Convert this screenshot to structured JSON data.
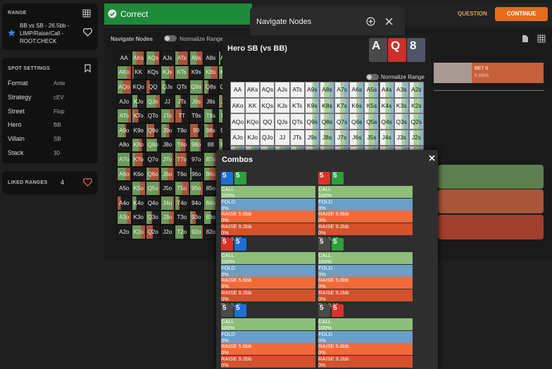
{
  "sidebar": {
    "range_panel": {
      "title": "RANGE",
      "description": "BB vs SB - 26.5bb - LIMP/Raise/Call - ROOT:CHECK"
    },
    "spot_settings": {
      "title": "SPOT SETTINGS",
      "rows": [
        [
          "Format",
          "Ante"
        ],
        [
          "Strategy",
          "cEV"
        ],
        [
          "Street",
          "Flop"
        ],
        [
          "Hero",
          "BB"
        ],
        [
          "Villain",
          "SB"
        ],
        [
          "Stack",
          "30"
        ]
      ]
    },
    "liked_ranges": {
      "title": "LIKED RANGES",
      "count": "4"
    }
  },
  "top_bar": {
    "status": "Correct",
    "question": "QUESTION",
    "continue": "CONTINUE"
  },
  "range_view": {
    "title": "Navigate Nodes",
    "toggle": "Normalize Range"
  },
  "node_action": {
    "label": "BET 6",
    "frequency": "9.391%"
  },
  "hand_grid": [
    [
      "AA",
      "AKs",
      "AQs",
      "AJs",
      "ATs",
      "A9s",
      "A8s",
      "A7s",
      "A6s",
      "A5s",
      "A4s",
      "A3s",
      "A2s"
    ],
    [
      "AKo",
      "KK",
      "KQs",
      "KJs",
      "KTs",
      "K9s",
      "K8s",
      "K7s",
      "K6s",
      "K5s",
      "K4s",
      "K3s",
      "K2s"
    ],
    [
      "AQo",
      "KQo",
      "QQ",
      "QJs",
      "QTs",
      "Q9s",
      "Q8s",
      "Q7s",
      "Q6s",
      "Q5s",
      "Q4s",
      "Q3s",
      "Q2s"
    ],
    [
      "AJo",
      "KJo",
      "QJo",
      "JJ",
      "JTs",
      "J9s",
      "J8s",
      "J7s",
      "J6s",
      "J5s",
      "J4s",
      "J3s",
      "J2s"
    ],
    [
      "ATo",
      "KTo",
      "QTo",
      "JTo",
      "TT",
      "T9s",
      "T8s",
      "T7s",
      "T6s",
      "T5s",
      "T4s",
      "T3s",
      "T2s"
    ],
    [
      "A9o",
      "K9o",
      "Q9o",
      "J9o",
      "T9o",
      "99",
      "98s",
      "97s",
      "96s",
      "95s",
      "94s",
      "93s",
      "92s"
    ],
    [
      "A8o",
      "K8o",
      "Q8o",
      "J8o",
      "T8o",
      "98o",
      "88",
      "87s",
      "86s",
      "85s",
      "84s",
      "83s",
      "82s"
    ],
    [
      "A7o",
      "K7o",
      "Q7o",
      "J7o",
      "T7o",
      "97o",
      "87o",
      "77",
      "76s",
      "75s",
      "74s",
      "73s",
      "72s"
    ],
    [
      "A6o",
      "K6o",
      "Q6o",
      "J6o",
      "T6o",
      "96o",
      "86o",
      "76o",
      "66",
      "65s",
      "64s",
      "63s",
      "62s"
    ],
    [
      "A5o",
      "K5o",
      "Q5o",
      "J5o",
      "T5o",
      "95o",
      "85o",
      "75o",
      "65o",
      "55",
      "54s",
      "53s",
      "52s"
    ],
    [
      "A4o",
      "K4o",
      "Q4o",
      "J4o",
      "T4o",
      "94o",
      "84o",
      "74o",
      "64o",
      "54o",
      "44",
      "43s",
      "42s"
    ],
    [
      "A3o",
      "K3o",
      "Q3o",
      "J3o",
      "T3o",
      "93o",
      "83o",
      "73o",
      "63o",
      "53o",
      "43o",
      "33",
      "32s"
    ],
    [
      "A2o",
      "K2o",
      "Q2o",
      "J2o",
      "T2o",
      "92o",
      "82o",
      "72o",
      "62o",
      "52o",
      "42o",
      "32o",
      "22"
    ]
  ],
  "navigate_modal": {
    "title": "Navigate Nodes",
    "node": "Hero SB (vs BB)",
    "board": [
      {
        "rank": "A",
        "color": "#4a4a4a"
      },
      {
        "rank": "Q",
        "color": "#c9312b"
      },
      {
        "rank": "8",
        "color": "#4f5566"
      }
    ],
    "toggle": "Normalize Range"
  },
  "combos_modal": {
    "title": "Combos",
    "combos": [
      {
        "cards": [
          {
            "rank": "5",
            "color": "#1f6fd1"
          },
          {
            "rank": "5",
            "color": "#2e9e3e"
          }
        ],
        "actions": [
          {
            "name": "CALL",
            "frequency": "100%",
            "ev": "EV: 7.78"
          },
          {
            "name": "FOLD",
            "frequency": "0%",
            "ev": "EV: 0.00"
          },
          {
            "name": "RAISE 5.6bb",
            "frequency": "0%",
            "ev": "EV: 5.36"
          },
          {
            "name": "RAISE 9.2bb",
            "frequency": "0%",
            "ev": "EV: 6.67"
          }
        ]
      },
      {
        "cards": [
          {
            "rank": "5",
            "color": "#d9322b"
          },
          {
            "rank": "5",
            "color": "#2e9e3e"
          }
        ],
        "actions": [
          {
            "name": "CALL",
            "frequency": "100%",
            "ev": "EV: 7.19"
          },
          {
            "name": "FOLD",
            "frequency": "0%",
            "ev": "EV: 0.00"
          },
          {
            "name": "RAISE 5.6bb",
            "frequency": "0%",
            "ev": "EV: 4.07"
          },
          {
            "name": "RAISE 9.2bb",
            "frequency": "0%",
            "ev": "EV: 5.42"
          }
        ]
      },
      {
        "cards": [
          {
            "rank": "5",
            "color": "#d9322b"
          },
          {
            "rank": "5",
            "color": "#1f6fd1"
          }
        ],
        "actions": [
          {
            "name": "CALL",
            "frequency": "100%",
            "ev": "EV: 7.19"
          },
          {
            "name": "FOLD",
            "frequency": "0%",
            "ev": "EV: 0.00"
          },
          {
            "name": "RAISE 5.6bb",
            "frequency": "0%",
            "ev": "EV: 4.07"
          },
          {
            "name": "RAISE 9.2bb",
            "frequency": "0%",
            "ev": "EV: 5.42"
          }
        ]
      },
      {
        "cards": [
          {
            "rank": "5",
            "color": "#4a4a4a"
          },
          {
            "rank": "5",
            "color": "#2e9e3e"
          }
        ],
        "actions": [
          {
            "name": "CALL",
            "frequency": "100%",
            "ev": "EV: 10.79"
          },
          {
            "name": "FOLD",
            "frequency": "0%",
            "ev": "EV: 0.00"
          },
          {
            "name": "RAISE 5.6bb",
            "frequency": "0%",
            "ev": "EV: 7.29"
          },
          {
            "name": "RAISE 9.2bb",
            "frequency": "0%",
            "ev": "EV: 8.60"
          }
        ]
      },
      {
        "cards": [
          {
            "rank": "5",
            "color": "#4a4a4a"
          },
          {
            "rank": "5",
            "color": "#1f6fd1"
          }
        ],
        "actions": [
          {
            "name": "CALL",
            "frequency": "100%",
            "ev": "EV: 10.79"
          },
          {
            "name": "FOLD",
            "frequency": "0%",
            "ev": "EV: 0.00"
          },
          {
            "name": "RAISE 5.6bb",
            "frequency": "0%",
            "ev": "EV: 7.29"
          },
          {
            "name": "RAISE 9.2bb",
            "frequency": "0%",
            "ev": "EV: 8.60"
          }
        ]
      },
      {
        "cards": [
          {
            "rank": "5",
            "color": "#4a4a4a"
          },
          {
            "rank": "5",
            "color": "#d9322b"
          }
        ],
        "actions": [
          {
            "name": "CALL",
            "frequency": "100%",
            "ev": "EV: 10.31"
          },
          {
            "name": "FOLD",
            "frequency": "0%",
            "ev": "EV: 0.00"
          },
          {
            "name": "RAISE 5.6bb",
            "frequency": "0%",
            "ev": "EV: 6.17"
          },
          {
            "name": "RAISE 9.2bb",
            "frequency": "0%",
            "ev": "EV: 7.38"
          }
        ]
      }
    ]
  }
}
